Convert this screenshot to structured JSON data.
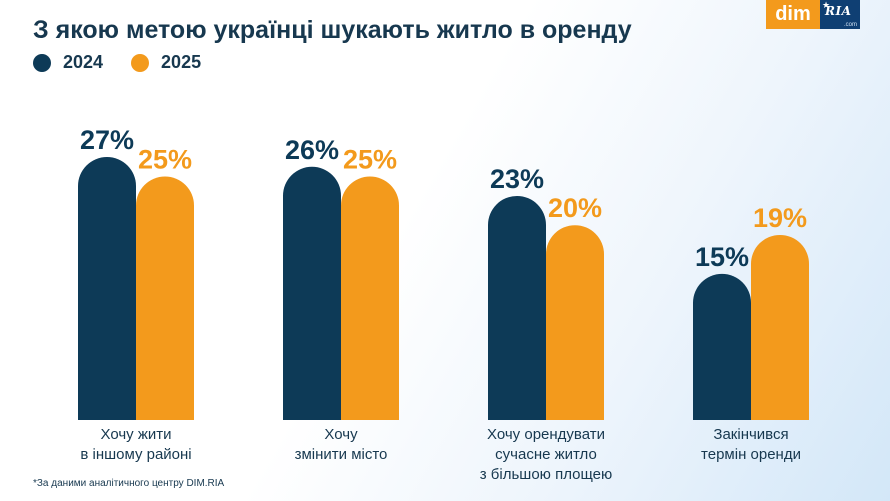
{
  "header": {
    "title": "З якою метою українці шукають житло в оренду"
  },
  "logo": {
    "dim_text": "dim",
    "ria_text": "RIA",
    "ria_suffix": ".com"
  },
  "colors": {
    "series_2024": "#0d3a57",
    "series_2025": "#f39a1c",
    "title": "#17384f"
  },
  "chart_data": {
    "type": "bar",
    "title": "З якою метою українці шукають житло в оренду",
    "categories": [
      [
        "Хочу жити",
        "в іншому районі"
      ],
      [
        "Хочу",
        "змінити місто"
      ],
      [
        "Хочу орендувати",
        "сучасне житло",
        "з більшою площею"
      ],
      [
        "Закінчився",
        "термін оренди"
      ]
    ],
    "series": [
      {
        "name": "2024",
        "values": [
          27,
          26,
          23,
          15
        ],
        "labels": [
          "27%",
          "26%",
          "23%",
          "15%"
        ]
      },
      {
        "name": "2025",
        "values": [
          25,
          25,
          20,
          19
        ],
        "labels": [
          "25%",
          "25%",
          "20%",
          "19%"
        ]
      }
    ],
    "legend_position": "top-left",
    "grid": false
  },
  "footnote": "*За даними аналітичного центру DIM.RIA"
}
